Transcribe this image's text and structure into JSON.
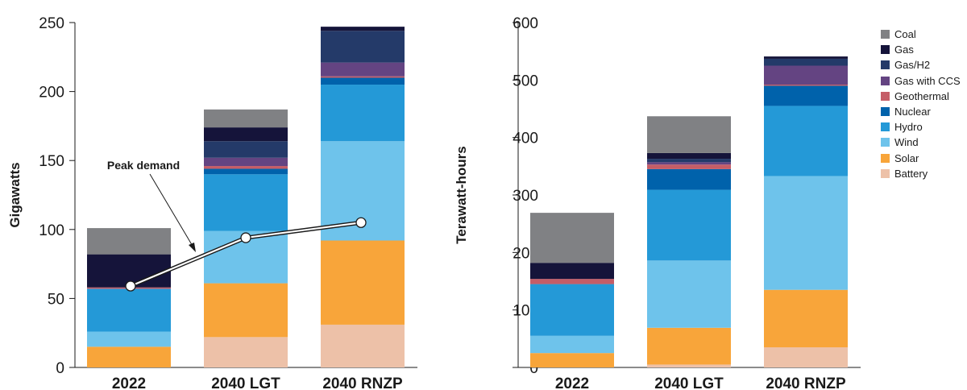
{
  "legend": [
    {
      "name": "Coal",
      "color": "#808184"
    },
    {
      "name": "Gas",
      "color": "#15143a"
    },
    {
      "name": "Gas/H2",
      "color": "#243a69"
    },
    {
      "name": "Gas with CCS",
      "color": "#644482"
    },
    {
      "name": "Geothermal",
      "color": "#c55d67"
    },
    {
      "name": "Nuclear",
      "color": "#0062ab"
    },
    {
      "name": "Hydro",
      "color": "#2499d7"
    },
    {
      "name": "Wind",
      "color": "#6ec3eb"
    },
    {
      "name": "Solar",
      "color": "#f8a53a"
    },
    {
      "name": "Battery",
      "color": "#edc1a8"
    }
  ],
  "chart_data": [
    {
      "type": "bar",
      "stacked": true,
      "categories": [
        "2022",
        "2040 LGT",
        "2040 RNZP"
      ],
      "ylabel": "Gigawatts",
      "ylim": [
        0,
        250
      ],
      "yticks": [
        0,
        50,
        100,
        150,
        200,
        250
      ],
      "series": [
        {
          "name": "Battery",
          "values": [
            0,
            22,
            31
          ]
        },
        {
          "name": "Solar",
          "values": [
            15,
            39,
            61
          ]
        },
        {
          "name": "Wind",
          "values": [
            11,
            38,
            72
          ]
        },
        {
          "name": "Hydro",
          "values": [
            31,
            41,
            41
          ]
        },
        {
          "name": "Nuclear",
          "values": [
            0,
            4,
            5
          ]
        },
        {
          "name": "Geothermal",
          "values": [
            1,
            2,
            1
          ]
        },
        {
          "name": "Gas with CCS",
          "values": [
            0,
            6,
            10
          ]
        },
        {
          "name": "Gas/H2",
          "values": [
            0,
            12,
            23
          ]
        },
        {
          "name": "Gas",
          "values": [
            24,
            10,
            3
          ]
        },
        {
          "name": "Coal",
          "values": [
            19,
            13,
            0
          ]
        }
      ],
      "peak_demand": {
        "label": "Peak demand",
        "values": [
          59,
          94,
          105
        ]
      }
    },
    {
      "type": "bar",
      "stacked": true,
      "categories": [
        "2022",
        "2040 LGT",
        "2040 RNZP"
      ],
      "ylabel": "Terawatt-hours",
      "ylim": [
        0,
        600
      ],
      "yticks": [
        0,
        100,
        200,
        300,
        400,
        500,
        600
      ],
      "series": [
        {
          "name": "Battery",
          "values": [
            0,
            5,
            35
          ]
        },
        {
          "name": "Solar",
          "values": [
            25,
            64,
            100
          ]
        },
        {
          "name": "Wind",
          "values": [
            30,
            117,
            198
          ]
        },
        {
          "name": "Hydro",
          "values": [
            90,
            123,
            122
          ]
        },
        {
          "name": "Nuclear",
          "values": [
            0,
            36,
            35
          ]
        },
        {
          "name": "Geothermal",
          "values": [
            9,
            8,
            2
          ]
        },
        {
          "name": "Gas with CCS",
          "values": [
            0,
            4,
            33
          ]
        },
        {
          "name": "Gas/H2",
          "values": [
            0,
            6,
            12
          ]
        },
        {
          "name": "Gas",
          "values": [
            28,
            10,
            4
          ]
        },
        {
          "name": "Coal",
          "values": [
            87,
            64,
            0
          ]
        }
      ]
    }
  ]
}
